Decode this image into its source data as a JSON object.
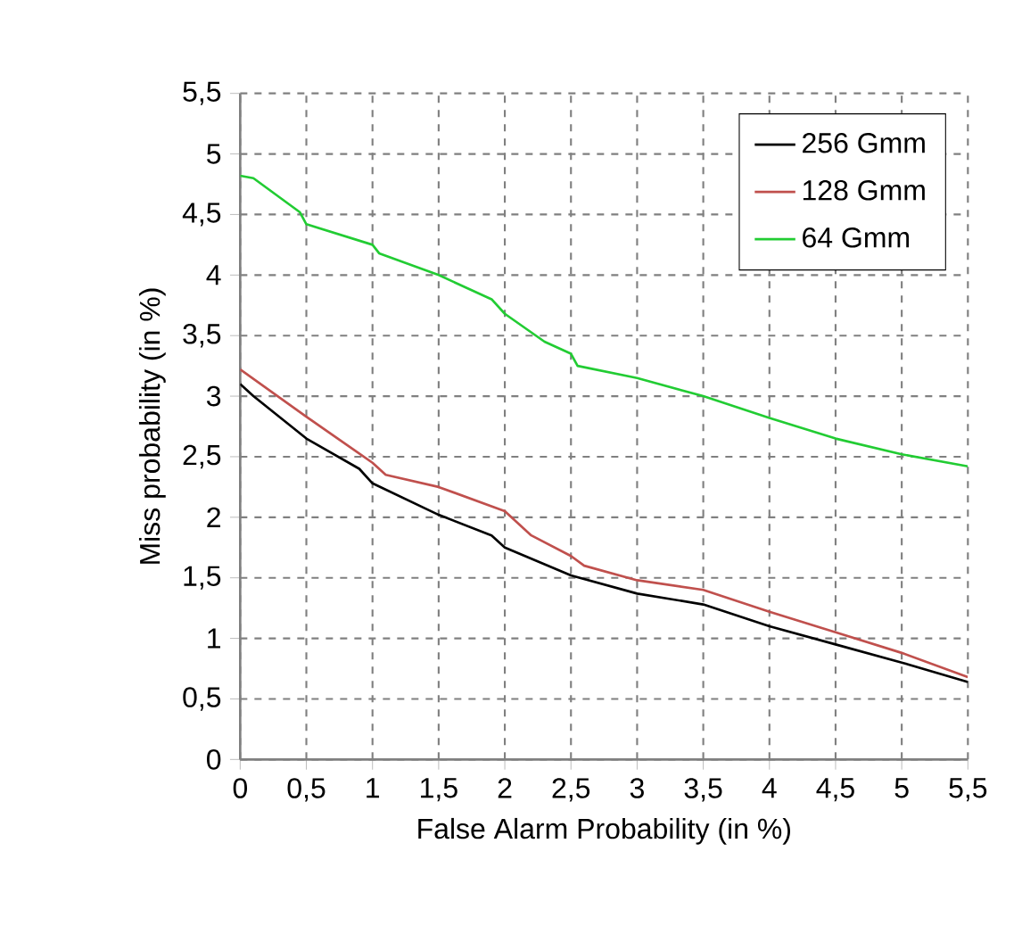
{
  "chart_data": {
    "type": "line",
    "xlabel": "False Alarm Probability (in %)",
    "ylabel": "Miss probability (in %)",
    "xlim": [
      0,
      5.5
    ],
    "ylim": [
      0,
      5.5
    ],
    "xticks": [
      0,
      {
        "value": 0.5,
        "label": "0,5"
      },
      1,
      {
        "value": 1.5,
        "label": "1,5"
      },
      2,
      {
        "value": 2.5,
        "label": "2,5"
      },
      3,
      {
        "value": 3.5,
        "label": "3,5"
      },
      4,
      {
        "value": 4.5,
        "label": "4,5"
      },
      5,
      {
        "value": 5.5,
        "label": "5,5"
      }
    ],
    "yticks": [
      0,
      {
        "value": 0.5,
        "label": "0,5"
      },
      1,
      {
        "value": 1.5,
        "label": "1,5"
      },
      2,
      {
        "value": 2.5,
        "label": "2,5"
      },
      3,
      {
        "value": 3.5,
        "label": "3,5"
      },
      4,
      {
        "value": 4.5,
        "label": "4,5"
      },
      5,
      {
        "value": 5.5,
        "label": "5,5"
      }
    ],
    "grid": true,
    "legend": "top right",
    "marker": "none",
    "line_style": "solid",
    "series": [
      {
        "name": "256 Gmm",
        "color": "#000000",
        "x": [
          0,
          0.1,
          0.5,
          0.9,
          1.0,
          1.5,
          1.9,
          2.0,
          2.5,
          3.0,
          3.5,
          4.0,
          4.5,
          5.0,
          5.5
        ],
        "values": [
          3.1,
          3.0,
          2.65,
          2.4,
          2.28,
          2.02,
          1.85,
          1.75,
          1.52,
          1.37,
          1.28,
          1.1,
          0.95,
          0.8,
          0.64
        ]
      },
      {
        "name": "128 Gmm",
        "color": "#c0504d",
        "x": [
          0,
          0.5,
          1.0,
          1.1,
          1.5,
          2.0,
          2.2,
          2.5,
          2.6,
          3.0,
          3.5,
          4.0,
          4.5,
          5.0,
          5.5
        ],
        "values": [
          3.22,
          2.83,
          2.45,
          2.35,
          2.25,
          2.05,
          1.85,
          1.68,
          1.6,
          1.48,
          1.4,
          1.22,
          1.05,
          0.88,
          0.68
        ]
      },
      {
        "name": "64 Gmm",
        "color": "#22cc33",
        "x": [
          0,
          0.1,
          0.45,
          0.5,
          1.0,
          1.05,
          1.5,
          1.9,
          2.0,
          2.3,
          2.5,
          2.55,
          3.0,
          3.5,
          4.0,
          4.5,
          5.0,
          5.5
        ],
        "values": [
          4.82,
          4.8,
          4.52,
          4.42,
          4.25,
          4.18,
          4.0,
          3.8,
          3.68,
          3.45,
          3.35,
          3.25,
          3.15,
          3.0,
          2.82,
          2.65,
          2.52,
          2.42
        ]
      }
    ]
  }
}
